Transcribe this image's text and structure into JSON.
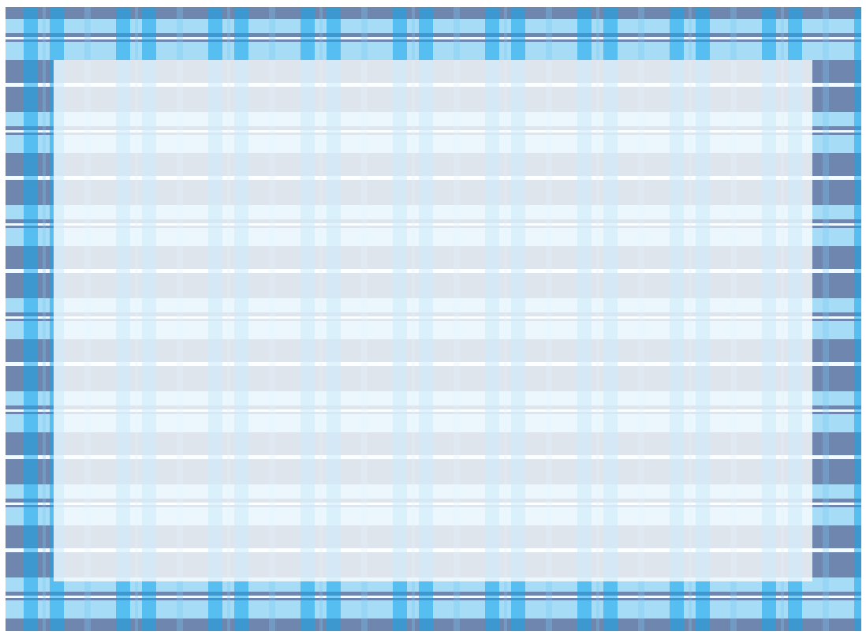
{
  "colors": {
    "dark_band": "#6f87ae",
    "light_band": "#a6dcf6",
    "white_line": "#f4fbff",
    "strong_vertical": "rgba(20,165,235,0.55)",
    "faint_vertical": "rgba(120,200,245,0.3)",
    "panel_overlay": "rgba(255,255,255,0.78)"
  }
}
